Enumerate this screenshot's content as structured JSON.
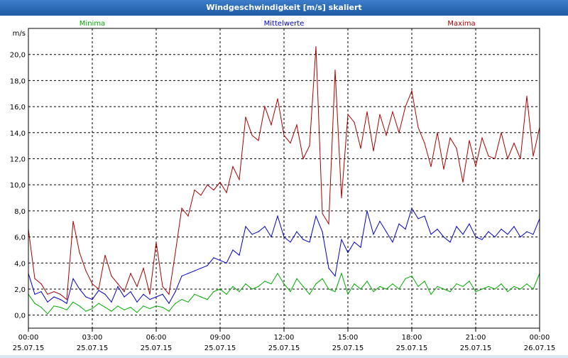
{
  "window": {
    "title": "Windgeschwindigkeit [m/s] skaliert"
  },
  "chart_data": {
    "type": "line",
    "title": "Windgeschwindigkeit [m/s] skaliert",
    "ylabel": "m/s",
    "xlabel": "",
    "ylim": [
      -1,
      22
    ],
    "xlim": [
      0,
      24
    ],
    "grid": true,
    "y_ticks": [
      0,
      2,
      4,
      6,
      8,
      10,
      12,
      14,
      16,
      18,
      20
    ],
    "y_tick_labels": [
      "0,0",
      "2,0",
      "4,0",
      "6,0",
      "8,0",
      "10,0",
      "12,0",
      "14,0",
      "16,0",
      "18,0",
      "20,0"
    ],
    "x_ticks": [
      0,
      3,
      6,
      9,
      12,
      15,
      18,
      21,
      24
    ],
    "x_tick_labels": [
      "00:00",
      "03:00",
      "06:00",
      "09:00",
      "12:00",
      "15:00",
      "18:00",
      "21:00",
      "00:00"
    ],
    "x_tick_dates": [
      "25.07.15",
      "25.07.15",
      "25.07.15",
      "25.07.15",
      "25.07.15",
      "25.07.15",
      "25.07.15",
      "25.07.15",
      "26.07.15"
    ],
    "legend": [
      {
        "name": "Minima",
        "color": "#00aa00",
        "position": "top-left"
      },
      {
        "name": "Mittelwerte",
        "color": "#0000cc",
        "position": "top-center"
      },
      {
        "name": "Maxima",
        "color": "#aa0000",
        "position": "top-right"
      }
    ],
    "series": [
      {
        "name": "Minima",
        "color": "#00aa00",
        "x": [
          0,
          0.3,
          0.6,
          0.9,
          1.2,
          1.5,
          1.8,
          2.1,
          2.4,
          2.7,
          3.0,
          3.3,
          3.6,
          3.9,
          4.2,
          4.5,
          4.8,
          5.1,
          5.4,
          5.7,
          6.0,
          6.3,
          6.6,
          6.9,
          7.2,
          7.5,
          7.8,
          8.1,
          8.4,
          8.7,
          9.0,
          9.3,
          9.6,
          9.9,
          10.2,
          10.5,
          10.8,
          11.1,
          11.4,
          11.7,
          12.0,
          12.3,
          12.6,
          12.9,
          13.2,
          13.5,
          13.8,
          14.1,
          14.4,
          14.7,
          15.0,
          15.3,
          15.6,
          15.9,
          16.2,
          16.5,
          16.8,
          17.1,
          17.4,
          17.7,
          18.0,
          18.3,
          18.6,
          18.9,
          19.2,
          19.5,
          19.8,
          20.1,
          20.4,
          20.7,
          21.0,
          21.3,
          21.6,
          21.9,
          22.2,
          22.5,
          22.8,
          23.1,
          23.4,
          23.7,
          24.0
        ],
        "values": [
          1.6,
          0.9,
          0.6,
          0.1,
          0.7,
          0.6,
          0.4,
          1.0,
          0.7,
          0.3,
          0.5,
          0.9,
          0.6,
          0.3,
          0.7,
          0.4,
          0.6,
          0.2,
          0.7,
          0.5,
          0.7,
          0.6,
          0.3,
          0.9,
          1.2,
          1.0,
          1.6,
          1.4,
          1.2,
          1.8,
          2.0,
          1.6,
          2.2,
          1.8,
          2.4,
          2.0,
          2.2,
          2.6,
          2.4,
          3.2,
          2.4,
          1.8,
          2.8,
          2.2,
          1.6,
          2.4,
          2.8,
          2.0,
          1.8,
          3.2,
          1.6,
          2.4,
          2.0,
          2.6,
          1.8,
          2.2,
          2.0,
          2.4,
          2.0,
          2.8,
          3.0,
          2.2,
          2.6,
          1.6,
          2.2,
          2.0,
          1.8,
          2.4,
          2.2,
          2.6,
          1.8,
          2.0,
          2.2,
          2.0,
          2.4,
          1.8,
          2.2,
          2.0,
          2.4,
          2.0,
          3.2
        ]
      },
      {
        "name": "Mittelwerte",
        "color": "#0000cc",
        "x": [
          0,
          0.3,
          0.6,
          0.9,
          1.2,
          1.5,
          1.8,
          2.1,
          2.4,
          2.7,
          3.0,
          3.3,
          3.6,
          3.9,
          4.2,
          4.5,
          4.8,
          5.1,
          5.4,
          5.7,
          6.0,
          6.3,
          6.6,
          6.9,
          7.2,
          7.5,
          7.8,
          8.1,
          8.4,
          8.7,
          9.0,
          9.3,
          9.6,
          9.9,
          10.2,
          10.5,
          10.8,
          11.1,
          11.4,
          11.7,
          12.0,
          12.3,
          12.6,
          12.9,
          13.2,
          13.5,
          13.8,
          14.1,
          14.4,
          14.7,
          15.0,
          15.3,
          15.6,
          15.9,
          16.2,
          16.5,
          16.8,
          17.1,
          17.4,
          17.7,
          18.0,
          18.3,
          18.6,
          18.9,
          19.2,
          19.5,
          19.8,
          20.1,
          20.4,
          20.7,
          21.0,
          21.3,
          21.6,
          21.9,
          22.2,
          22.5,
          22.8,
          23.1,
          23.4,
          23.7,
          24.0
        ],
        "values": [
          3.2,
          1.6,
          1.8,
          1.0,
          1.4,
          1.2,
          0.9,
          2.8,
          2.0,
          1.4,
          1.2,
          1.9,
          1.6,
          1.0,
          2.2,
          1.4,
          1.8,
          1.0,
          1.6,
          1.2,
          1.4,
          1.6,
          0.9,
          1.8,
          3.0,
          3.2,
          3.4,
          3.6,
          3.8,
          4.4,
          4.2,
          4.0,
          5.0,
          4.6,
          6.8,
          6.2,
          6.4,
          6.8,
          6.0,
          7.6,
          6.0,
          5.6,
          6.4,
          5.8,
          5.6,
          7.6,
          6.4,
          3.6,
          3.0,
          5.8,
          4.8,
          5.6,
          5.2,
          8.0,
          6.2,
          7.2,
          6.4,
          5.6,
          7.0,
          6.6,
          8.2,
          7.4,
          7.6,
          6.2,
          6.6,
          6.0,
          5.6,
          6.8,
          6.2,
          7.0,
          6.0,
          5.8,
          6.4,
          6.0,
          6.6,
          6.2,
          6.8,
          6.0,
          6.4,
          6.2,
          7.4
        ]
      },
      {
        "name": "Maxima",
        "color": "#aa0000",
        "x": [
          0,
          0.3,
          0.6,
          0.9,
          1.2,
          1.5,
          1.8,
          2.1,
          2.4,
          2.7,
          3.0,
          3.3,
          3.6,
          3.9,
          4.2,
          4.5,
          4.8,
          5.1,
          5.4,
          5.7,
          6.0,
          6.3,
          6.6,
          6.9,
          7.2,
          7.5,
          7.8,
          8.1,
          8.4,
          8.7,
          9.0,
          9.3,
          9.6,
          9.9,
          10.2,
          10.5,
          10.8,
          11.1,
          11.4,
          11.7,
          12.0,
          12.3,
          12.6,
          12.9,
          13.2,
          13.5,
          13.8,
          14.1,
          14.4,
          14.7,
          15.0,
          15.3,
          15.6,
          15.9,
          16.2,
          16.5,
          16.8,
          17.1,
          17.4,
          17.7,
          18.0,
          18.3,
          18.6,
          18.9,
          19.2,
          19.5,
          19.8,
          20.1,
          20.4,
          20.7,
          21.0,
          21.3,
          21.6,
          21.9,
          22.2,
          22.5,
          22.8,
          23.1,
          23.4,
          23.7,
          24.0
        ],
        "values": [
          6.6,
          2.8,
          2.4,
          1.6,
          1.8,
          1.6,
          1.2,
          7.2,
          4.8,
          3.4,
          2.4,
          2.0,
          4.6,
          3.0,
          2.4,
          1.8,
          3.2,
          2.2,
          3.6,
          1.6,
          5.6,
          2.2,
          1.6,
          4.8,
          8.2,
          7.6,
          9.6,
          9.2,
          10.0,
          9.6,
          10.2,
          9.4,
          11.4,
          10.4,
          15.2,
          13.8,
          13.4,
          16.0,
          14.6,
          16.6,
          13.8,
          13.2,
          14.6,
          12.0,
          13.0,
          20.6,
          7.8,
          7.0,
          18.8,
          9.0,
          15.4,
          14.8,
          12.8,
          15.6,
          12.6,
          15.4,
          13.8,
          15.6,
          14.0,
          16.0,
          17.2,
          14.4,
          13.2,
          11.4,
          14.0,
          11.2,
          13.6,
          12.8,
          10.2,
          13.4,
          11.4,
          13.6,
          12.2,
          12.0,
          14.0,
          12.0,
          13.2,
          12.0,
          16.8,
          12.2,
          14.4
        ]
      }
    ]
  }
}
